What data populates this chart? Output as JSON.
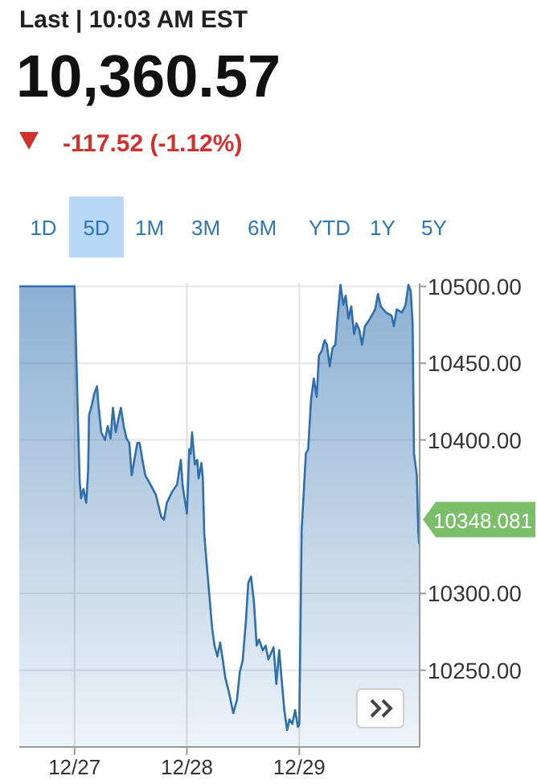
{
  "chart_data": {
    "type": "area",
    "title": "10,360.57",
    "subtitle": "-117.52 (-1.12%)",
    "annotations": [
      "Last | 10:03 AM EST",
      "1D",
      "5D",
      "1M",
      "3M",
      "6M",
      "YTD",
      "1Y",
      "5Y",
      "10348.081"
    ],
    "x": [
      "--12-26T12:12",
      "--12-27T00:00",
      "--12-27T00:48",
      "--12-27T01:06",
      "--12-27T01:24",
      "--12-27T01:54",
      "--12-27T02:30",
      "--12-27T02:54",
      "--12-27T03:06",
      "--12-27T03:42",
      "--12-27T04:12",
      "--12-27T04:48",
      "--12-27T05:06",
      "--12-27T05:42",
      "--12-27T06:30",
      "--12-27T07:06",
      "--12-27T07:42",
      "--12-27T08:12",
      "--12-27T08:48",
      "--12-27T09:24",
      "--12-27T09:54",
      "--12-27T10:30",
      "--12-27T11:06",
      "--12-27T11:42",
      "--12-27T12:12",
      "--12-27T13:24",
      "--12-27T13:54",
      "--12-27T14:30",
      "--12-27T15:06",
      "--12-27T16:12",
      "--12-27T17:24",
      "--12-27T18:30",
      "--12-27T19:06",
      "--12-27T19:42",
      "--12-27T20:48",
      "--12-27T21:54",
      "--12-27T22:42",
      "--12-27T23:06",
      "--12-28T00:00",
      "--12-28T00:30",
      "--12-28T00:48",
      "--12-28T01:06",
      "--12-28T01:42",
      "--12-28T02:12",
      "--12-28T02:30",
      "--12-28T03:06",
      "--12-28T03:24",
      "--12-28T03:42",
      "--12-28T04:12",
      "--12-28T05:24",
      "--12-28T05:54",
      "--12-28T06:30",
      "--12-28T07:06",
      "--12-28T07:42",
      "--12-28T08:12",
      "--12-28T09:06",
      "--12-28T09:54",
      "--12-28T10:42",
      "--12-28T11:18",
      "--12-28T11:54",
      "--12-28T12:36",
      "--12-28T13:06",
      "--12-28T13:42",
      "--12-28T14:18",
      "--12-28T14:54",
      "--12-28T15:24",
      "--12-28T16:12",
      "--12-28T16:48",
      "--12-28T17:24",
      "--12-28T18:30",
      "--12-28T19:06",
      "--12-28T19:42",
      "--12-28T20:12",
      "--12-28T20:48",
      "--12-28T21:24",
      "--12-28T21:54",
      "--12-28T22:30",
      "--12-28T23:06",
      "--12-28T23:42",
      "--12-29T00:00",
      "--12-29T00:30",
      "--12-29T01:24",
      "--12-29T01:54",
      "--12-29T02:30",
      "--12-29T03:06",
      "--12-29T03:42",
      "--12-29T04:12",
      "--12-29T04:48",
      "--12-29T05:24",
      "--12-29T05:54",
      "--12-29T06:30",
      "--12-29T07:06",
      "--12-29T07:42",
      "--12-29T08:12",
      "--12-29T08:48",
      "--12-29T09:24",
      "--12-29T09:54",
      "--12-29T10:30",
      "--12-29T11:06",
      "--12-29T11:42",
      "--12-29T12:12",
      "--12-29T12:48",
      "--12-29T13:24",
      "--12-29T14:00",
      "--12-29T15:06",
      "--12-29T16:12",
      "--12-29T16:48",
      "--12-29T17:24",
      "--12-29T18:30",
      "--12-29T19:42",
      "--12-29T20:12",
      "--12-29T20:48",
      "--12-29T21:54",
      "--12-29T22:42",
      "--12-29T23:18",
      "--12-29T23:48",
      "--12-30T00:12",
      "--12-30T00:30",
      "--12-30T01:06",
      "--12-30T01:24",
      "--12-30T01:36"
    ],
    "series": [
      {
        "color": "#2f6fad",
        "values": [
          10500,
          10500,
          10405,
          10373,
          10362,
          10368,
          10359,
          10380,
          10416,
          10423,
          10430,
          10435,
          10423,
          10405,
          10400,
          10409,
          10401,
          10421,
          10405,
          10414,
          10421,
          10409,
          10401,
          10398,
          10377,
          10398,
          10398,
          10387,
          10377,
          10371,
          10364,
          10350,
          10348,
          10359,
          10366,
          10371,
          10387,
          10370,
          10352,
          10394,
          10391,
          10405,
          10384,
          10387,
          10375,
          10385,
          10375,
          10339,
          10320,
          10277,
          10266,
          10259,
          10268,
          10256,
          10245,
          10234,
          10222,
          10231,
          10249,
          10256,
          10282,
          10307,
          10311,
          10295,
          10266,
          10270,
          10263,
          10266,
          10257,
          10265,
          10241,
          10263,
          10245,
          10224,
          10211,
          10218,
          10215,
          10224,
          10213,
          10215,
          10341,
          10391,
          10394,
          10426,
          10440,
          10428,
          10455,
          10458,
          10465,
          10462,
          10448,
          10460,
          10462,
          10481,
          10501,
          10488,
          10494,
          10479,
          10487,
          10469,
          10476,
          10472,
          10462,
          10474,
          10479,
          10485,
          10495,
          10487,
          10483,
          10481,
          10474,
          10485,
          10483,
          10488,
          10501,
          10497,
          10476,
          10391,
          10377,
          10341,
          10332
        ]
      }
    ],
    "xlim": [
      "--12-26T12:12",
      "--12-30T01:42"
    ],
    "xticks": [
      {
        "value": "--12-27",
        "label": "12/27"
      },
      {
        "value": "--12-28",
        "label": "12/28"
      },
      {
        "value": "--12-29",
        "label": "12/29"
      }
    ],
    "ylim": [
      10200,
      10502
    ],
    "yticks": [
      {
        "value": 10250,
        "label": "10250.00"
      },
      {
        "value": 10300,
        "label": "10300.00"
      },
      {
        "value": 10400,
        "label": "10400.00"
      },
      {
        "value": 10450,
        "label": "10450.00"
      },
      {
        "value": 10500,
        "label": "10500.00"
      }
    ],
    "grid": true
  }
}
